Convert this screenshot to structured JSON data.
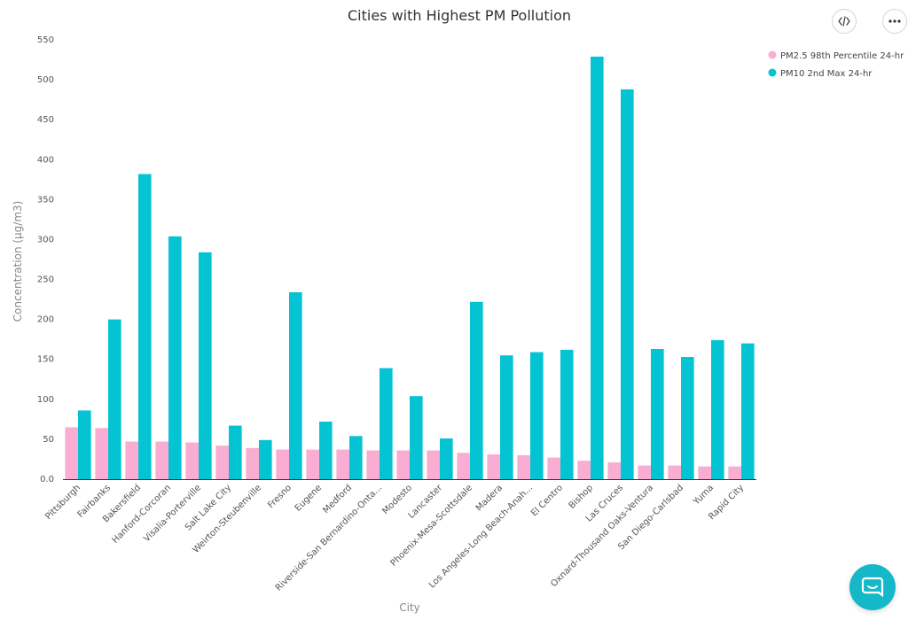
{
  "toolbar": {
    "code_icon": "code-icon",
    "more_icon": "more-options-icon"
  },
  "chat": {
    "icon": "chat-icon",
    "color": "#14b8c8"
  },
  "chart_data": {
    "type": "bar",
    "title": "Cities with Highest PM Pollution",
    "xlabel": "City",
    "ylabel": "Concentration (μg/m3)",
    "ylim": [
      0,
      550
    ],
    "yticks": [
      "0.0",
      "50",
      "100",
      "150",
      "200",
      "250",
      "300",
      "350",
      "400",
      "450",
      "500",
      "550"
    ],
    "legend_position": "top-right",
    "grid": false,
    "categories": [
      "Pittsburgh",
      "Fairbanks",
      "Bakersfield",
      "Hanford-Corcoran",
      "Visalia-Porterville",
      "Salt Lake City",
      "Weirton-Steubenville",
      "Fresno",
      "Eugene",
      "Medford",
      "Riverside-San Bernardino-Onta...",
      "Modesto",
      "Lancaster",
      "Phoenix-Mesa-Scottsdale",
      "Madera",
      "Los Angeles-Long Beach-Anah...",
      "El Centro",
      "Bishop",
      "Las Cruces",
      "Oxnard-Thousand Oaks-Ventura",
      "San Diego-Carlsbad",
      "Yuma",
      "Rapid City"
    ],
    "series": [
      {
        "name": "PM2.5 98th Percentile 24-hr",
        "color": "#f9add2",
        "values": [
          65,
          64,
          47,
          47,
          46,
          42,
          39,
          37,
          37,
          37,
          36,
          36,
          36,
          33,
          31,
          30,
          27,
          23,
          21,
          17,
          17,
          16,
          16
        ]
      },
      {
        "name": "PM10 2nd Max 24-hr",
        "color": "#04c4d4",
        "values": [
          86,
          200,
          382,
          304,
          284,
          67,
          49,
          234,
          72,
          54,
          139,
          104,
          51,
          222,
          155,
          159,
          162,
          529,
          488,
          163,
          153,
          174,
          170
        ]
      }
    ]
  }
}
